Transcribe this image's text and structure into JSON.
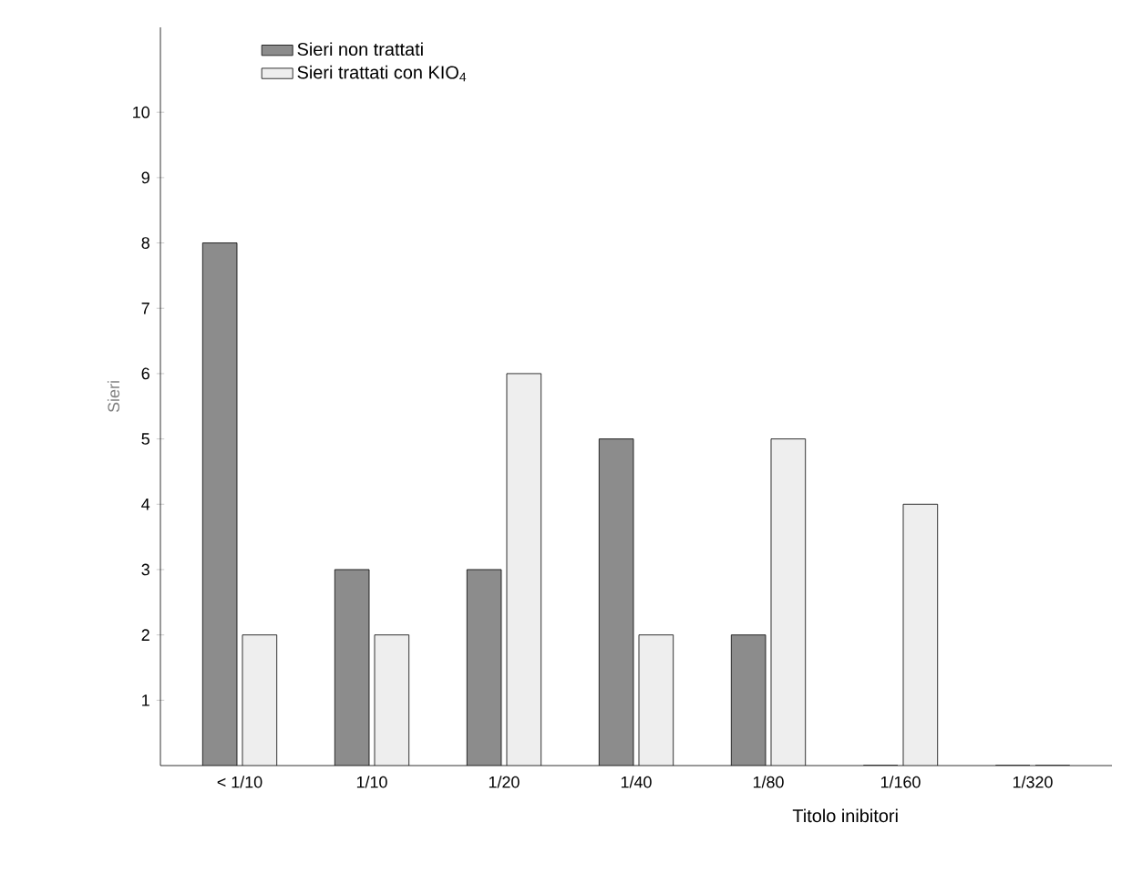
{
  "chart_data": {
    "type": "bar",
    "xlabel": "Titolo inibitori",
    "ylabel": "Sieri",
    "categories": [
      "< 1/10",
      "1/10",
      "1/20",
      "1/40",
      "1/80",
      "1/160",
      "1/320"
    ],
    "series": [
      {
        "name": "Sieri non trattati",
        "color": "#8c8c8c",
        "values": [
          8,
          3,
          3,
          5,
          2,
          0,
          0
        ]
      },
      {
        "name": "Sieri trattati con KIO$_{4}$",
        "color": "#eeeeee",
        "values": [
          2,
          2,
          6,
          2,
          5,
          4,
          0
        ]
      }
    ],
    "ylim": [
      0,
      11.3
    ],
    "yticks": [
      1,
      2,
      3,
      4,
      5,
      6,
      7,
      8,
      9,
      10
    ],
    "legend": "top left",
    "grid": false
  }
}
